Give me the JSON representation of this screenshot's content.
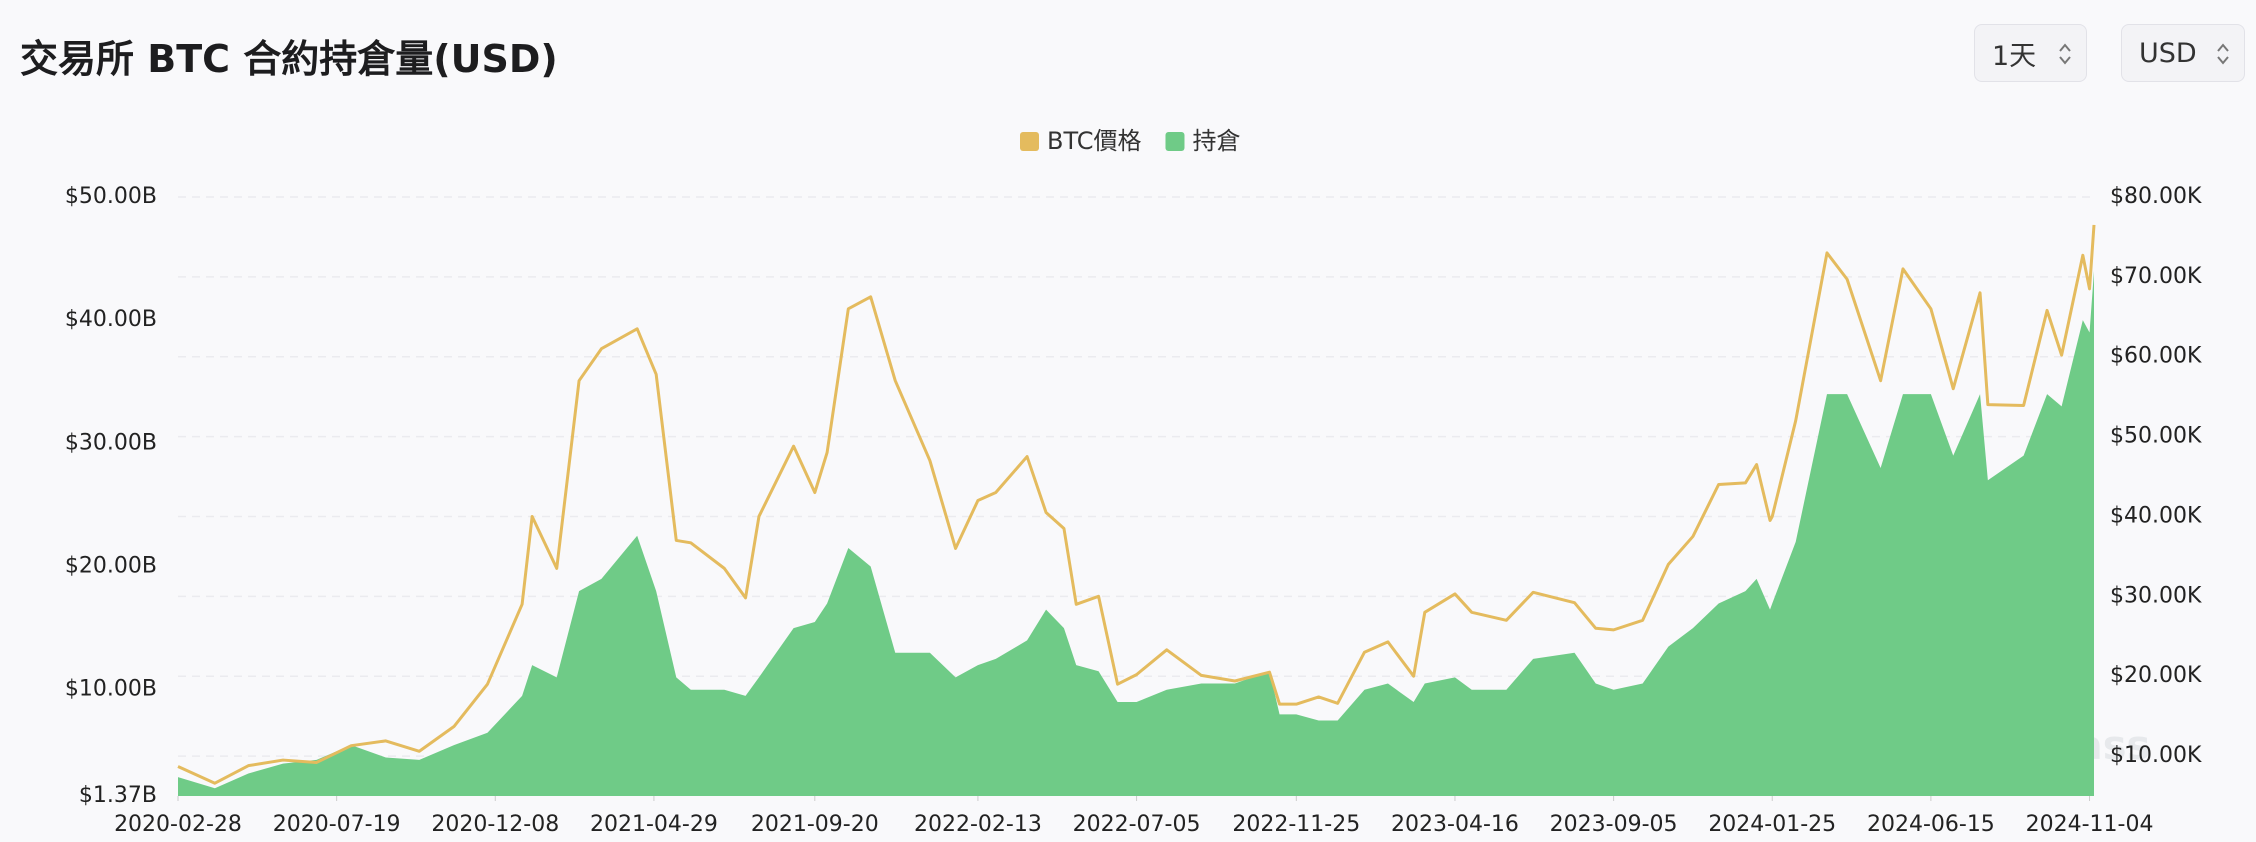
{
  "header": {
    "title": "交易所 BTC 合約持倉量(USD)",
    "controls": [
      "1天",
      "USD"
    ]
  },
  "chart_data": {
    "type": "combo",
    "x": [
      "2020-02-28",
      "2020-04-01",
      "2020-05-01",
      "2020-06-01",
      "2020-07-01",
      "2020-08-01",
      "2020-09-01",
      "2020-10-01",
      "2020-11-01",
      "2020-12-01",
      "2021-01-01",
      "2021-01-10",
      "2021-02-01",
      "2021-02-21",
      "2021-03-13",
      "2021-04-14",
      "2021-05-01",
      "2021-05-19",
      "2021-06-01",
      "2021-07-01",
      "2021-07-20",
      "2021-08-01",
      "2021-09-01",
      "2021-09-20",
      "2021-10-01",
      "2021-10-20",
      "2021-11-09",
      "2021-12-01",
      "2022-01-01",
      "2022-01-24",
      "2022-02-13",
      "2022-03-01",
      "2022-03-29",
      "2022-04-15",
      "2022-05-01",
      "2022-05-12",
      "2022-06-01",
      "2022-06-18",
      "2022-07-05",
      "2022-08-01",
      "2022-09-01",
      "2022-10-01",
      "2022-11-01",
      "2022-11-10",
      "2022-11-25",
      "2022-12-15",
      "2023-01-01",
      "2023-01-25",
      "2023-02-15",
      "2023-03-10",
      "2023-03-20",
      "2023-04-16",
      "2023-05-01",
      "2023-06-01",
      "2023-06-25",
      "2023-08-01",
      "2023-08-20",
      "2023-09-05",
      "2023-10-01",
      "2023-10-24",
      "2023-11-15",
      "2023-12-08",
      "2024-01-01",
      "2024-01-11",
      "2024-01-23",
      "2024-01-25",
      "2024-02-15",
      "2024-03-14",
      "2024-04-01",
      "2024-05-01",
      "2024-05-21",
      "2024-06-15",
      "2024-07-05",
      "2024-07-29",
      "2024-08-05",
      "2024-09-06",
      "2024-09-27",
      "2024-10-10",
      "2024-10-29",
      "2024-11-04",
      "2024-11-08"
    ],
    "series": [
      {
        "name": "持倉",
        "type": "area",
        "color": "#6fcb87",
        "values": [
          2900000000,
          2000000000,
          3200000000,
          4000000000,
          4300000000,
          5500000000,
          4500000000,
          4300000000,
          5500000000,
          6500000000,
          9500000000,
          12000000000,
          11000000000,
          18000000000,
          19000000000,
          22500000000,
          18000000000,
          11000000000,
          10000000000,
          10000000000,
          9500000000,
          11000000000,
          15000000000,
          15500000000,
          17000000000,
          21500000000,
          20000000000,
          13000000000,
          13000000000,
          11000000000,
          12000000000,
          12500000000,
          14000000000,
          16500000000,
          15000000000,
          12000000000,
          11500000000,
          9000000000,
          9000000000,
          10000000000,
          10500000000,
          10500000000,
          11500000000,
          8000000000,
          8000000000,
          7500000000,
          7500000000,
          10000000000,
          10500000000,
          9000000000,
          10500000000,
          11000000000,
          10000000000,
          10000000000,
          12500000000,
          13000000000,
          10500000000,
          10000000000,
          10500000000,
          13500000000,
          15000000000,
          17000000000,
          18000000000,
          19000000000,
          16500000000,
          17000000000,
          22000000000,
          34000000000,
          34000000000,
          28000000000,
          34000000000,
          34000000000,
          29000000000,
          34000000000,
          27000000000,
          29000000000,
          34000000000,
          33000000000,
          40000000000,
          39000000000,
          44000000000
        ]
      },
      {
        "name": "BTC價格",
        "type": "line",
        "axis": "y2",
        "color": "#e4bb5e",
        "values": [
          8700,
          6600,
          8800,
          9500,
          9200,
          11300,
          11900,
          10600,
          13700,
          19000,
          29000,
          40000,
          33500,
          57000,
          61000,
          63500,
          57800,
          37000,
          36700,
          33500,
          29800,
          40000,
          48800,
          43000,
          48000,
          66000,
          67500,
          57000,
          47000,
          36000,
          42000,
          43000,
          47500,
          40500,
          38500,
          29000,
          30000,
          19000,
          20200,
          23300,
          20100,
          19400,
          20500,
          16500,
          16500,
          17400,
          16600,
          23000,
          24300,
          20000,
          28000,
          30300,
          28000,
          27000,
          30500,
          29200,
          26000,
          25800,
          27000,
          34000,
          37500,
          44000,
          44200,
          46500,
          39500,
          40000,
          52000,
          73000,
          69700,
          57000,
          71000,
          66000,
          56000,
          68000,
          54000,
          53900,
          65800,
          60200,
          72700,
          68500,
          76500
        ]
      }
    ],
    "legend_order": [
      "BTC價格",
      "持倉"
    ],
    "xlim": [
      "2020-02-28",
      "2024-11-08"
    ],
    "xticks": [
      "2020-02-28",
      "2020-07-19",
      "2020-12-08",
      "2021-04-29",
      "2021-09-20",
      "2022-02-13",
      "2022-07-05",
      "2022-11-25",
      "2023-04-16",
      "2023-09-05",
      "2024-01-25",
      "2024-06-15",
      "2024-11-04"
    ],
    "ylim": [
      1370000000,
      50000000000
    ],
    "yticks": [
      {
        "value": 1370000000,
        "label": "$1.37B"
      },
      {
        "value": 10000000000,
        "label": "$10.00B"
      },
      {
        "value": 20000000000,
        "label": "$20.00B"
      },
      {
        "value": 30000000000,
        "label": "$30.00B"
      },
      {
        "value": 40000000000,
        "label": "$40.00B"
      },
      {
        "value": 50000000000,
        "label": "$50.00B"
      }
    ],
    "y2lim": [
      5000,
      80000
    ],
    "y2ticks": [
      {
        "value": 10000,
        "label": "$10.00K"
      },
      {
        "value": 20000,
        "label": "$20.00K"
      },
      {
        "value": 30000,
        "label": "$30.00K"
      },
      {
        "value": 40000,
        "label": "$40.00K"
      },
      {
        "value": 50000,
        "label": "$50.00K"
      },
      {
        "value": 60000,
        "label": "$60.00K"
      },
      {
        "value": 70000,
        "label": "$70.00K"
      },
      {
        "value": 80000,
        "label": "$80.00K"
      }
    ],
    "grid": true,
    "watermark": "coinglass"
  }
}
